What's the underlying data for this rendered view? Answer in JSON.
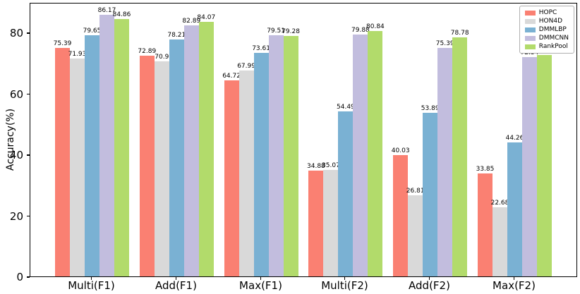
{
  "chart_data": {
    "type": "bar",
    "title": "",
    "xlabel": "",
    "ylabel": "Accuracy(%)",
    "ylim": [
      0,
      90
    ],
    "yticks": [
      0,
      20,
      40,
      60,
      80
    ],
    "grid": false,
    "legend_position": "upper right",
    "value_labels_shown": true,
    "categories": [
      "Multi(F1)",
      "Add(F1)",
      "Max(F1)",
      "Multi(F2)",
      "Add(F2)",
      "Max(F2)"
    ],
    "series": [
      {
        "name": "HOPC",
        "color": "#FA8072",
        "values": [
          75.39,
          72.89,
          64.72,
          34.88,
          40.03,
          33.85
        ]
      },
      {
        "name": "HON4D",
        "color": "#D9D9D9",
        "values": [
          71.93,
          70.9,
          67.99,
          35.07,
          26.81,
          22.68
        ]
      },
      {
        "name": "DMMLBP",
        "color": "#7AB1D3",
        "values": [
          79.65,
          78.21,
          73.61,
          54.49,
          53.89,
          44.26
        ]
      },
      {
        "name": "DMMCNN",
        "color": "#C2BDDE",
        "values": [
          86.17,
          82.89,
          79.51,
          79.88,
          75.39,
          72.34
        ]
      },
      {
        "name": "RankPool",
        "color": "#B2DB6B",
        "values": [
          84.86,
          84.07,
          79.28,
          80.84,
          78.78,
          72.95
        ]
      }
    ],
    "axis_color": "#000000"
  }
}
